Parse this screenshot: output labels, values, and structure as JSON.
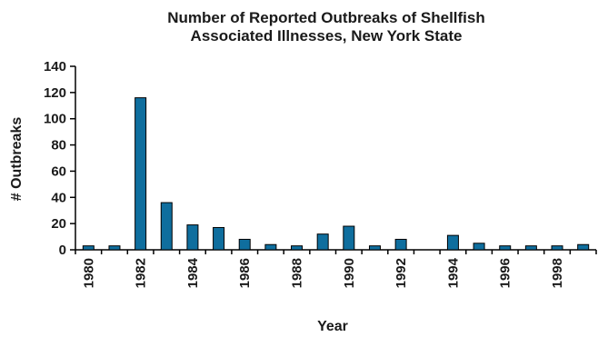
{
  "chart_data": {
    "type": "bar",
    "title_line1": "Number of Reported Outbreaks of Shellfish",
    "title_line2": "Associated Illnesses, New York State",
    "xlabel": "Year",
    "ylabel": "# Outbreaks",
    "ylim": [
      0,
      140
    ],
    "yticks": [
      0,
      20,
      40,
      60,
      80,
      100,
      120,
      140
    ],
    "xtick_labels": [
      "1980",
      "1982",
      "1984",
      "1986",
      "1988",
      "1990",
      "1992",
      "1994",
      "1996",
      "1998"
    ],
    "categories": [
      "1980",
      "1981",
      "1982",
      "1983",
      "1984",
      "1985",
      "1986",
      "1987",
      "1988",
      "1989",
      "1990",
      "1991",
      "1992",
      "1993",
      "1994",
      "1995",
      "1996",
      "1997",
      "1998",
      "1999"
    ],
    "values": [
      3,
      3,
      116,
      36,
      19,
      17,
      8,
      4,
      3,
      12,
      18,
      3,
      8,
      0,
      11,
      5,
      3,
      3,
      3,
      4
    ],
    "bar_color": "#0f6e9e",
    "bar_edge_color": "#000000",
    "grid": false
  }
}
